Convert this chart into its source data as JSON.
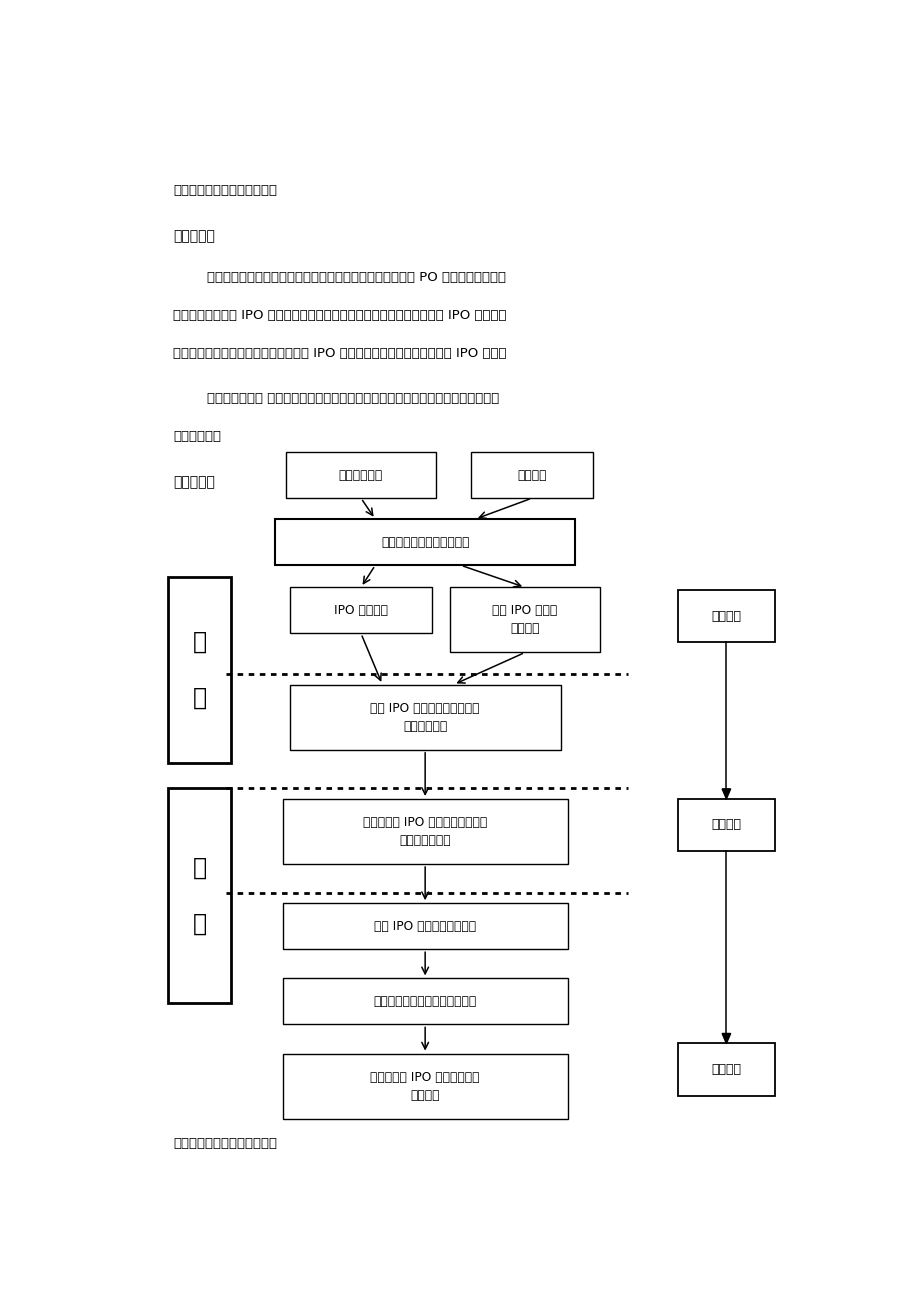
{
  "page_width": 9.2,
  "page_height": 13.02,
  "bg_color": "#ffffff",
  "heading1": "三、研究的方法与技术路线：",
  "heading2_bold": "研究方法：",
  "para1_line1": "        本课题将主要采取理论分析与实证分析相结合的方法：从对 PO 的概念梳理及方式",
  "para1_line2": "分析，在分析我国 IPO 机制的演变史及各阶段面临的瓶颈以及现阶段我国 IPO 抑价问题",
  "para1_line3": "以及破发问题的基础上，解析影响我国 IPO 定价的各因素，探寻适合我国的 IPO 机制。",
  "para2_line1": "        主要的研究方法 文献研究法、研究法、定性分析法、经验总结法、描述性研究法、",
  "para2_line2": "案例研究法。",
  "heading3_bold": "技术路线：",
  "footer_text": "四、研究的总体安排与进度：",
  "node1_text": "现实背景分析",
  "node2_text": "文献述评",
  "node3_text": "我国首次公开发行定价研究",
  "node4_text": "IPO 概念梳理",
  "node5_line1": "常见 IPO 方式比",
  "node5_line2": "较与分析",
  "node6_line1": "我国 IPO 机制的演变史及各阶",
  "node6_line2": "段面临的瓶颈",
  "node7_line1": "现阶段我国 IPO 抑价问题以及破发",
  "node7_line2": "问题的实证分析",
  "node8_text": "我国 IPO 定价影响因素分析",
  "node9_text": "针对上述影响因素的政策性建议",
  "node10_line1": "针对我国的 IPO 机制改革的政",
  "node10_line2": "策性建议",
  "label_li": "理\n\n论",
  "label_sz": "实\n\n证",
  "label_tq": "提出问题",
  "label_aq": "分析问题",
  "label_jq": "解决问题"
}
